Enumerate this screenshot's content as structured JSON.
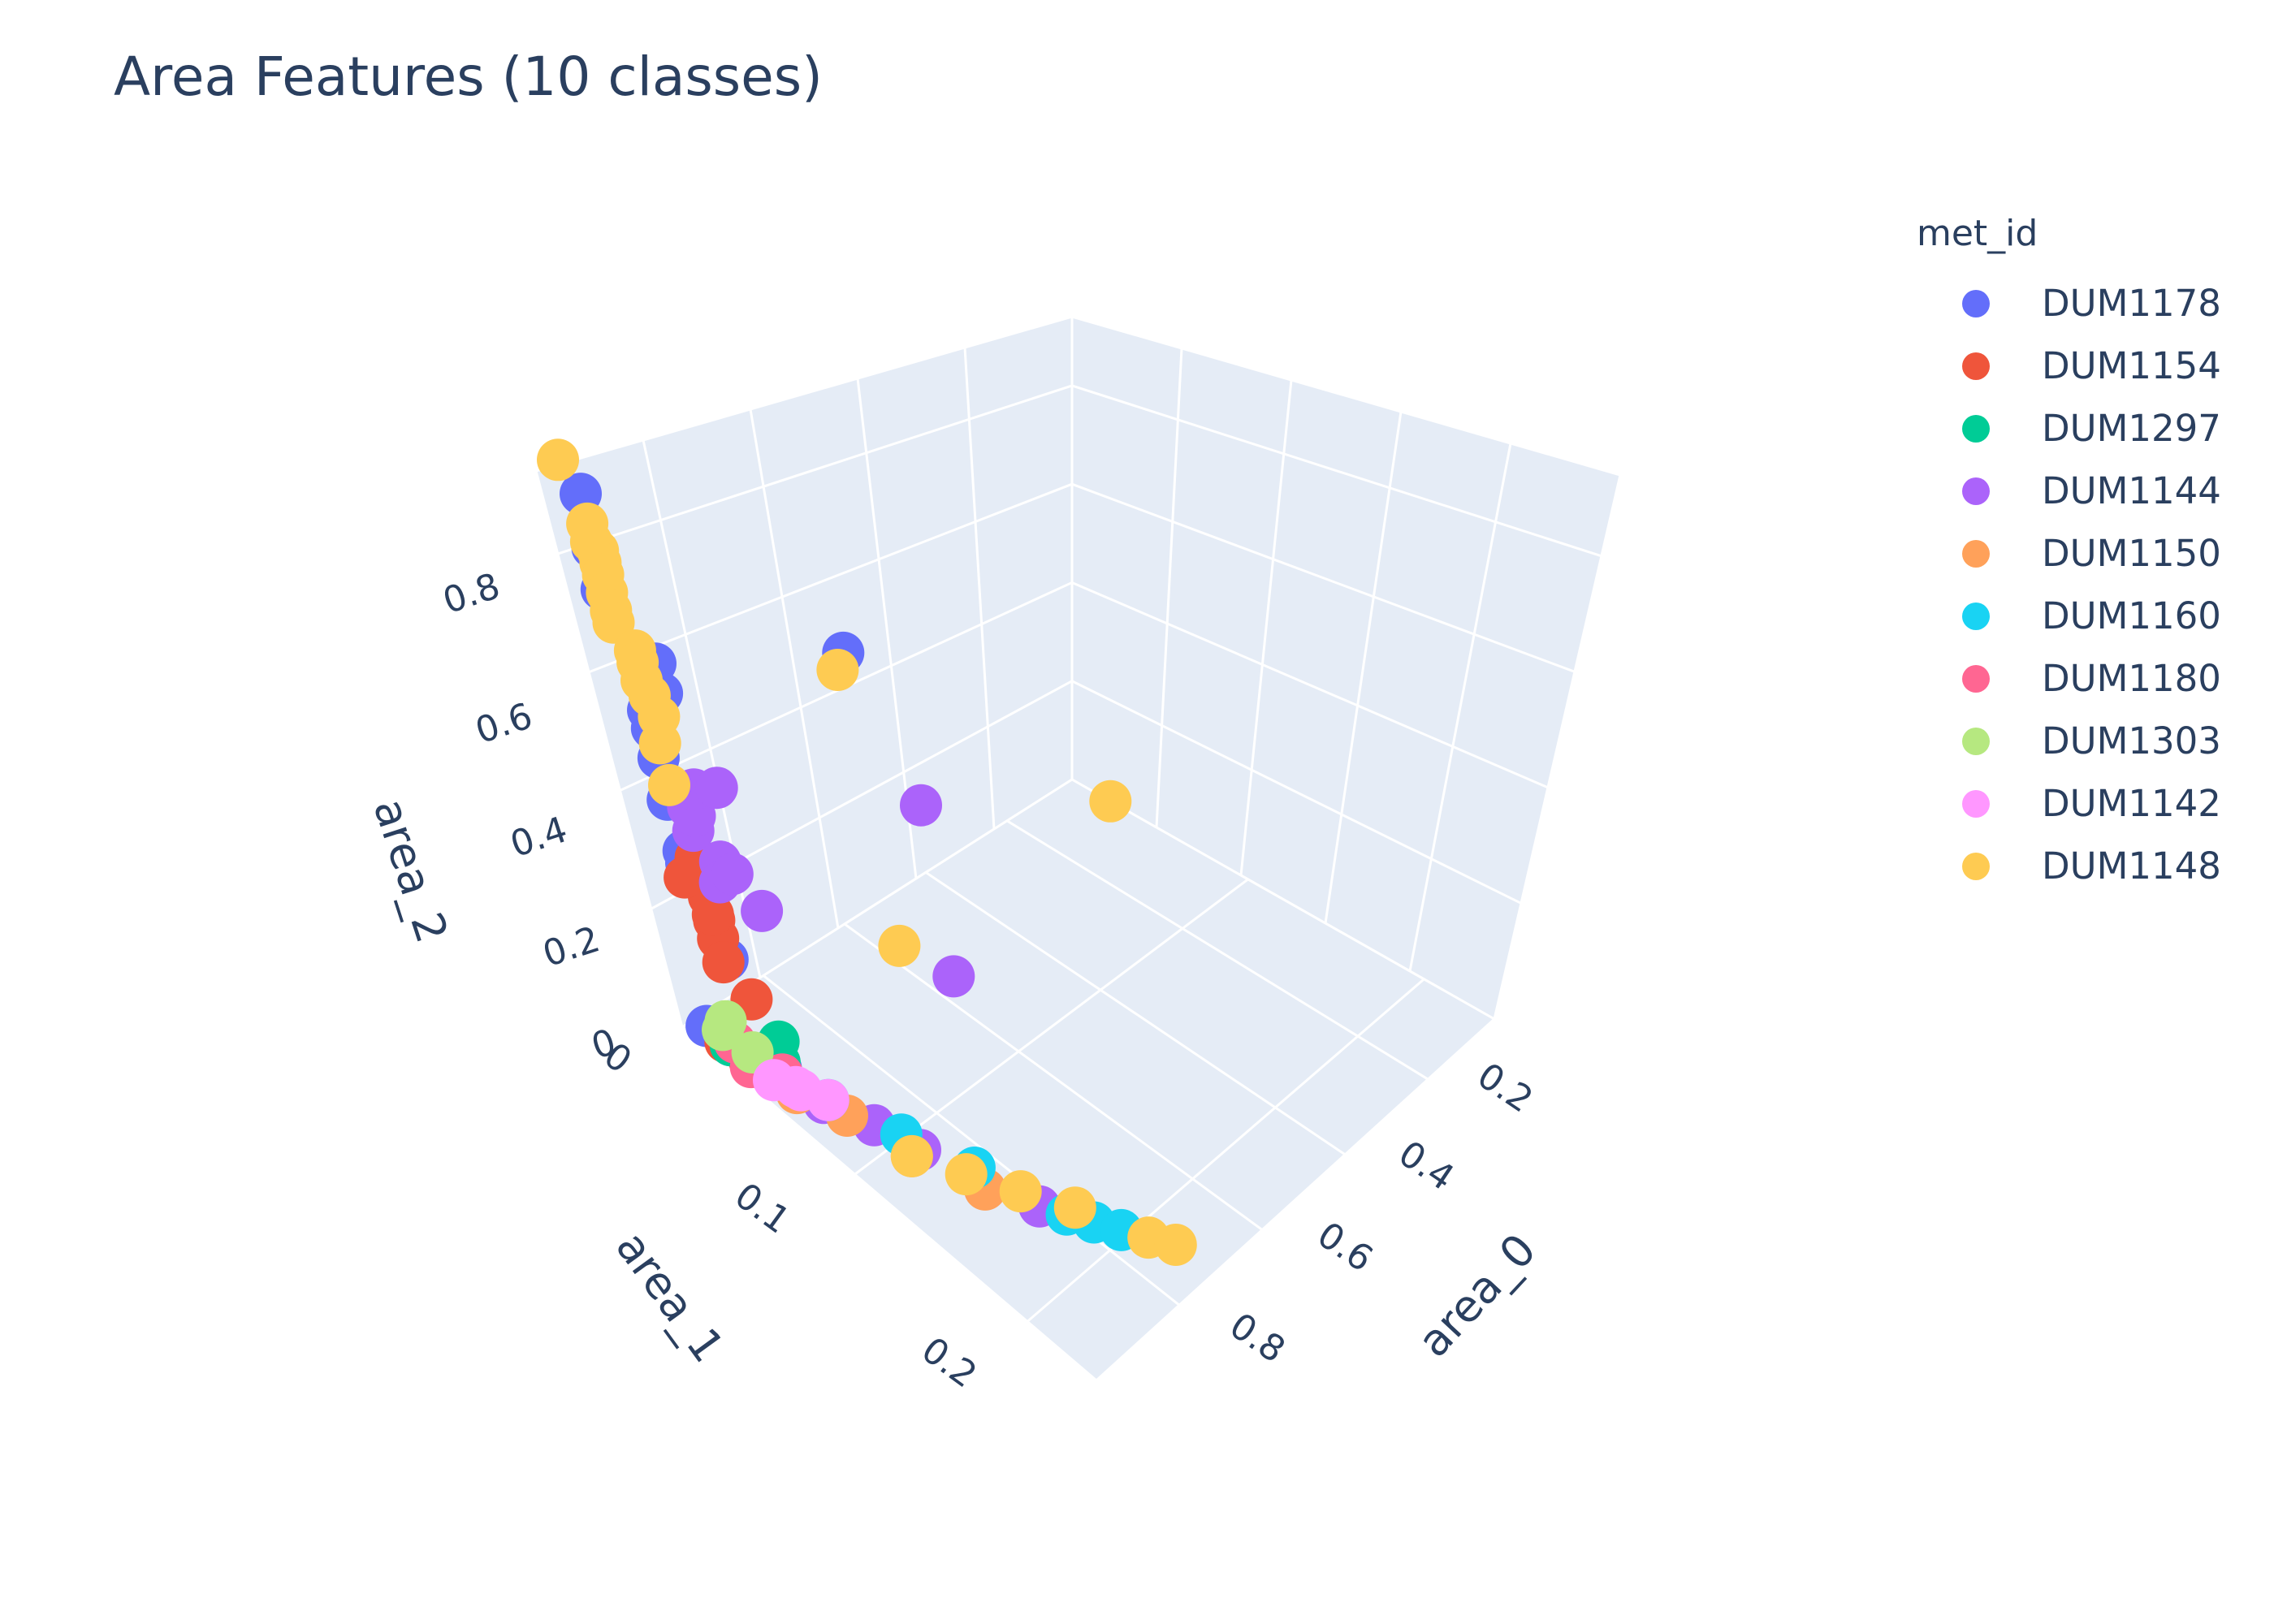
{
  "title": "Area Features (10 classes)",
  "legend": {
    "title": "met_id",
    "items": [
      {
        "name": "DUM1178",
        "color": "#636efa"
      },
      {
        "name": "DUM1154",
        "color": "#ef553b"
      },
      {
        "name": "DUM1297",
        "color": "#00cc96"
      },
      {
        "name": "DUM1144",
        "color": "#ab63fa"
      },
      {
        "name": "DUM1150",
        "color": "#ffa15a"
      },
      {
        "name": "DUM1160",
        "color": "#19d3f3"
      },
      {
        "name": "DUM1180",
        "color": "#ff6692"
      },
      {
        "name": "DUM1303",
        "color": "#b6e880"
      },
      {
        "name": "DUM1142",
        "color": "#ff97ff"
      },
      {
        "name": "DUM1148",
        "color": "#fecb52"
      }
    ]
  },
  "chart_data": {
    "type": "scatter",
    "mode": "3d",
    "title": "Area Features (10 classes)",
    "legend_title": "met_id",
    "axes": {
      "x": {
        "label": "area_0",
        "ticks": [
          "0.2",
          "0.4",
          "0.6",
          "0.8"
        ],
        "range": [
          0,
          0.95
        ]
      },
      "y": {
        "label": "area_1",
        "ticks": [
          "0",
          "0.1",
          "0.2"
        ],
        "range": [
          0,
          0.22
        ]
      },
      "z": {
        "label": "area_2",
        "ticks": [
          "0",
          "0.2",
          "0.4",
          "0.6",
          "0.8"
        ],
        "range": [
          0,
          0.95
        ]
      }
    },
    "grid": true,
    "legend_position": "right",
    "series": [
      {
        "name": "DUM1178",
        "color": "#636efa",
        "points": [
          [
            0.0,
            0.01,
            0.92
          ],
          [
            0.0,
            0.01,
            0.83
          ],
          [
            0.0,
            0.01,
            0.76
          ],
          [
            0.01,
            0.02,
            0.58
          ],
          [
            0.01,
            0.02,
            0.55
          ],
          [
            0.01,
            0.02,
            0.5
          ],
          [
            0.01,
            0.02,
            0.43
          ],
          [
            0.02,
            0.02,
            0.34
          ],
          [
            0.02,
            0.02,
            0.32
          ],
          [
            0.03,
            0.03,
            0.18
          ],
          [
            0.08,
            0.01,
            0.6
          ],
          [
            0.08,
            0.01,
            0.55
          ],
          [
            0.52,
            0.0,
            0.4
          ],
          [
            0.02,
            0.01,
            0.02
          ],
          [
            0.03,
            0.02,
            0.01
          ],
          [
            0.06,
            0.04,
            0.01
          ]
        ]
      },
      {
        "name": "DUM1154",
        "color": "#ef553b",
        "points": [
          [
            0.01,
            0.03,
            0.36
          ],
          [
            0.01,
            0.03,
            0.33
          ],
          [
            0.02,
            0.03,
            0.29
          ],
          [
            0.02,
            0.03,
            0.25
          ],
          [
            0.02,
            0.03,
            0.22
          ],
          [
            0.02,
            0.03,
            0.18
          ],
          [
            0.03,
            0.04,
            0.14
          ],
          [
            0.02,
            0.03,
            0.26
          ],
          [
            0.01,
            0.02,
            0.3
          ],
          [
            0.02,
            0.02,
            0.02
          ],
          [
            0.03,
            0.03,
            0.01
          ],
          [
            0.05,
            0.04,
            0.0
          ]
        ]
      },
      {
        "name": "DUM1297",
        "color": "#00cc96",
        "points": [
          [
            0.06,
            0.04,
            0.02
          ],
          [
            0.1,
            0.03,
            0.01
          ],
          [
            0.03,
            0.02,
            0.01
          ],
          [
            0.05,
            0.03,
            0.0
          ]
        ]
      },
      {
        "name": "DUM1144",
        "color": "#ab63fa",
        "points": [
          [
            0.05,
            0.02,
            0.4
          ],
          [
            0.05,
            0.02,
            0.36
          ],
          [
            0.06,
            0.02,
            0.38
          ],
          [
            0.07,
            0.02,
            0.42
          ],
          [
            0.06,
            0.03,
            0.33
          ],
          [
            0.05,
            0.03,
            0.3
          ],
          [
            0.08,
            0.03,
            0.3
          ],
          [
            0.12,
            0.02,
            0.4
          ],
          [
            0.06,
            0.05,
            0.3
          ],
          [
            0.4,
            0.06,
            0.05
          ],
          [
            0.58,
            0.01,
            0.14
          ],
          [
            0.1,
            0.08,
            0.0
          ],
          [
            0.12,
            0.1,
            0.0
          ],
          [
            0.18,
            0.15,
            0.0
          ],
          [
            0.07,
            0.06,
            0.0
          ]
        ]
      },
      {
        "name": "DUM1150",
        "color": "#ffa15a",
        "points": [
          [
            0.08,
            0.07,
            0.0
          ],
          [
            0.1,
            0.1,
            0.0
          ],
          [
            0.14,
            0.13,
            0.0
          ],
          [
            0.05,
            0.05,
            0.0
          ]
        ]
      },
      {
        "name": "DUM1160",
        "color": "#19d3f3",
        "points": [
          [
            0.12,
            0.09,
            0.0
          ],
          [
            0.16,
            0.12,
            0.0
          ],
          [
            0.2,
            0.16,
            0.0
          ],
          [
            0.22,
            0.17,
            0.0
          ],
          [
            0.24,
            0.18,
            0.0
          ],
          [
            0.08,
            0.06,
            0.0
          ]
        ]
      },
      {
        "name": "DUM1180",
        "color": "#ff6692",
        "points": [
          [
            0.04,
            0.02,
            0.01
          ],
          [
            0.03,
            0.03,
            0.0
          ],
          [
            0.06,
            0.04,
            0.0
          ]
        ]
      },
      {
        "name": "DUM1303",
        "color": "#b6e880",
        "points": [
          [
            0.02,
            0.02,
            0.04
          ],
          [
            0.03,
            0.02,
            0.05
          ],
          [
            0.04,
            0.03,
            0.02
          ]
        ]
      },
      {
        "name": "DUM1142",
        "color": "#ff97ff",
        "points": [
          [
            0.06,
            0.05,
            0.0
          ],
          [
            0.08,
            0.06,
            0.0
          ],
          [
            0.04,
            0.04,
            0.0
          ],
          [
            0.05,
            0.05,
            0.01
          ]
        ]
      },
      {
        "name": "DUM1148",
        "color": "#fecb52",
        "points": [
          [
            0.0,
            0.0,
            0.98
          ],
          [
            0.0,
            0.01,
            0.87
          ],
          [
            0.0,
            0.01,
            0.84
          ],
          [
            0.01,
            0.01,
            0.82
          ],
          [
            0.01,
            0.01,
            0.8
          ],
          [
            0.01,
            0.01,
            0.78
          ],
          [
            0.01,
            0.01,
            0.75
          ],
          [
            0.01,
            0.01,
            0.72
          ],
          [
            0.01,
            0.01,
            0.7
          ],
          [
            0.01,
            0.02,
            0.68
          ],
          [
            0.01,
            0.02,
            0.66
          ],
          [
            0.01,
            0.02,
            0.63
          ],
          [
            0.02,
            0.02,
            0.6
          ],
          [
            0.03,
            0.02,
            0.56
          ],
          [
            0.02,
            0.02,
            0.52
          ],
          [
            0.02,
            0.02,
            0.45
          ],
          [
            0.5,
            0.0,
            0.38
          ],
          [
            0.3,
            0.06,
            0.15
          ],
          [
            0.95,
            0.02,
            0.0
          ],
          [
            0.18,
            0.14,
            0.0
          ],
          [
            0.22,
            0.16,
            0.0
          ],
          [
            0.26,
            0.19,
            0.0
          ],
          [
            0.28,
            0.2,
            0.0
          ],
          [
            0.14,
            0.12,
            0.0
          ],
          [
            0.1,
            0.1,
            0.0
          ]
        ]
      }
    ]
  }
}
